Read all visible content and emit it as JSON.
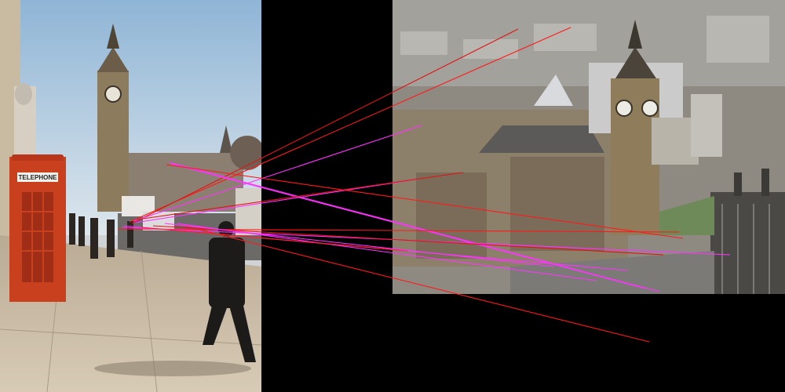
{
  "left_image": {
    "description_icon": "street-scene-photo",
    "telephone_sign": "TELEPHONE"
  },
  "right_image": {
    "description_icon": "aerial-palace-photo"
  },
  "colors": {
    "background": "#000000",
    "match_red": "#ff0000",
    "match_magenta": "#ff33ff"
  }
}
